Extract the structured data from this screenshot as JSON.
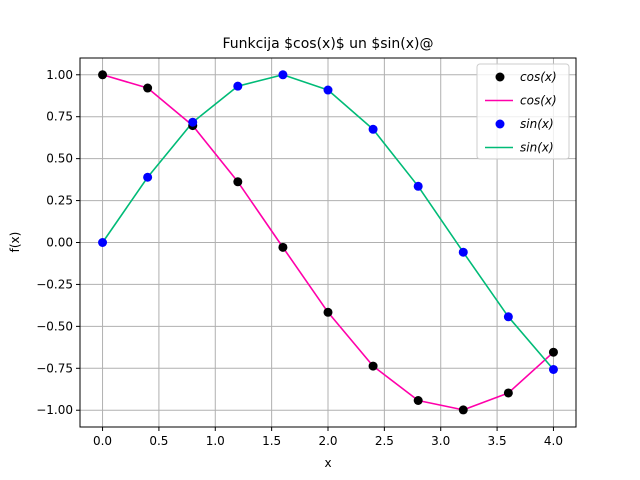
{
  "chart_data": {
    "type": "line+scatter",
    "title": "Funkcija $cos(x)$ un $sin(x)@",
    "xlabel": "x",
    "ylabel": "f(x)",
    "xlim": [
      -0.2,
      4.2
    ],
    "ylim": [
      -1.1,
      1.1
    ],
    "grid": true,
    "legend_position": "top-right",
    "xticks": [
      0.0,
      0.5,
      1.0,
      1.5,
      2.0,
      2.5,
      3.0,
      3.5,
      4.0
    ],
    "xtick_labels": [
      "0.0",
      "0.5",
      "1.0",
      "1.5",
      "2.0",
      "2.5",
      "3.0",
      "3.5",
      "4.0"
    ],
    "yticks": [
      -1.0,
      -0.75,
      -0.5,
      -0.25,
      0.0,
      0.25,
      0.5,
      0.75,
      1.0
    ],
    "ytick_labels": [
      "−1.00",
      "−0.75",
      "−0.50",
      "−0.25",
      "0.00",
      "0.25",
      "0.50",
      "0.75",
      "1.00"
    ],
    "x": [
      0.0,
      0.4,
      0.8,
      1.2,
      1.6,
      2.0,
      2.4,
      2.8,
      3.2,
      3.6,
      4.0
    ],
    "series": [
      {
        "name": "cos(x)",
        "legend_label": "cos(x)",
        "kind": "scatter",
        "color": "#000000",
        "values": [
          1.0,
          0.921,
          0.697,
          0.362,
          -0.029,
          -0.416,
          -0.737,
          -0.942,
          -0.998,
          -0.897,
          -0.654
        ]
      },
      {
        "name": "cos(x)",
        "legend_label": "cos(x)",
        "kind": "line",
        "color": "#ff00aa",
        "values": [
          1.0,
          0.921,
          0.697,
          0.362,
          -0.029,
          -0.416,
          -0.737,
          -0.942,
          -0.998,
          -0.897,
          -0.654
        ]
      },
      {
        "name": "sin(x)",
        "legend_label": "sin(x)",
        "kind": "scatter",
        "color": "#0000ff",
        "values": [
          0.0,
          0.389,
          0.717,
          0.932,
          1.0,
          0.909,
          0.675,
          0.335,
          -0.058,
          -0.443,
          -0.757
        ]
      },
      {
        "name": "sin(x)",
        "legend_label": "sin(x)",
        "kind": "line",
        "color": "#00bb77",
        "values": [
          0.0,
          0.389,
          0.717,
          0.932,
          1.0,
          0.909,
          0.675,
          0.335,
          -0.058,
          -0.443,
          -0.757
        ]
      }
    ]
  }
}
